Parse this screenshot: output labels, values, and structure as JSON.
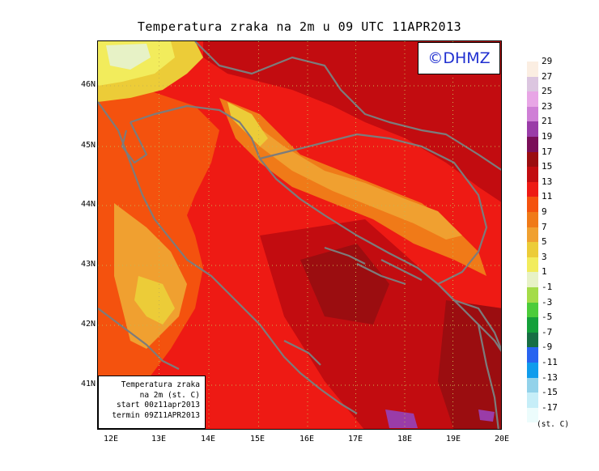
{
  "title": "Temperatura zraka na 2m u 09 UTC 11APR2013",
  "logo_text": "©DHMZ",
  "info_box": {
    "line1": "Temperatura zraka",
    "line2": "na 2m (st. C)",
    "line3": "start 00z11apr2013",
    "line4": "termin 09Z11APR2013"
  },
  "axes": {
    "lat_labels": [
      "46N",
      "45N",
      "44N",
      "43N",
      "42N",
      "41N"
    ],
    "lon_labels": [
      "12E",
      "13E",
      "14E",
      "15E",
      "16E",
      "17E",
      "18E",
      "19E",
      "20E"
    ]
  },
  "legend": {
    "units": "(st. C)",
    "labels": [
      "29",
      "27",
      "25",
      "23",
      "21",
      "19",
      "17",
      "15",
      "13",
      "11",
      "9",
      "7",
      "5",
      "3",
      "1",
      "-1",
      "-3",
      "-5",
      "-7",
      "-9",
      "-11",
      "-13",
      "-15",
      "-17"
    ],
    "colors": [
      "#fbeee2",
      "#dcc6e0",
      "#e8a6e6",
      "#cf7fd6",
      "#9a3ca8",
      "#7a0e58",
      "#9b0d10",
      "#c20c10",
      "#ee1a14",
      "#f4520e",
      "#f07a18",
      "#f0a030",
      "#eccc38",
      "#f2ec5c",
      "#e7f2c6",
      "#a4dc48",
      "#4ccc3a",
      "#14a03a",
      "#176e44",
      "#2864f0",
      "#0f9cec",
      "#92d2ea",
      "#c6eef8",
      "#ecfcfc"
    ]
  },
  "map_colors": {
    "warm_base": "#ee1a14",
    "hot": "#c20c10",
    "very_hot": "#9b0d10",
    "mild": "#f4520e",
    "cool": "#f07a18",
    "cooler": "#f0a030",
    "cold": "#eccc38",
    "very_cold": "#f2ec5c",
    "pale": "#e7f2c6",
    "purple": "#9a3ca8",
    "coast": "#7c7c7c",
    "grid": "#c8b450"
  }
}
